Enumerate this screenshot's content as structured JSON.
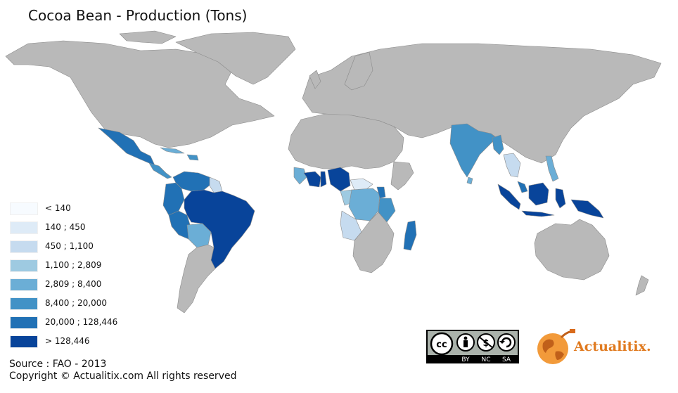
{
  "title": "Cocoa Bean - Production (Tons)",
  "legend": {
    "items": [
      {
        "label": "< 140",
        "color": "#f7fbff"
      },
      {
        "label": "140 ; 450",
        "color": "#deebf7"
      },
      {
        "label": "450 ; 1,100",
        "color": "#c6dbef"
      },
      {
        "label": "1,100 ; 2,809",
        "color": "#9ecae1"
      },
      {
        "label": "2,809 ; 8,400",
        "color": "#6baed6"
      },
      {
        "label": "8,400 ; 20,000",
        "color": "#4292c6"
      },
      {
        "label": "20,000 ; 128,446",
        "color": "#2171b5"
      },
      {
        "label": "> 128,446",
        "color": "#08449a"
      }
    ]
  },
  "colors": {
    "land_no_data": "#b9b9b9",
    "border": "#8a8a8a",
    "ocean": "#ffffff"
  },
  "source": "Source : FAO - 2013",
  "copyright": "Copyright © Actualitix.com All rights reserved",
  "license": {
    "by": "BY",
    "nc": "NC",
    "sa": "SA"
  },
  "logo": {
    "text": "Actualitix",
    "dot": "."
  }
}
